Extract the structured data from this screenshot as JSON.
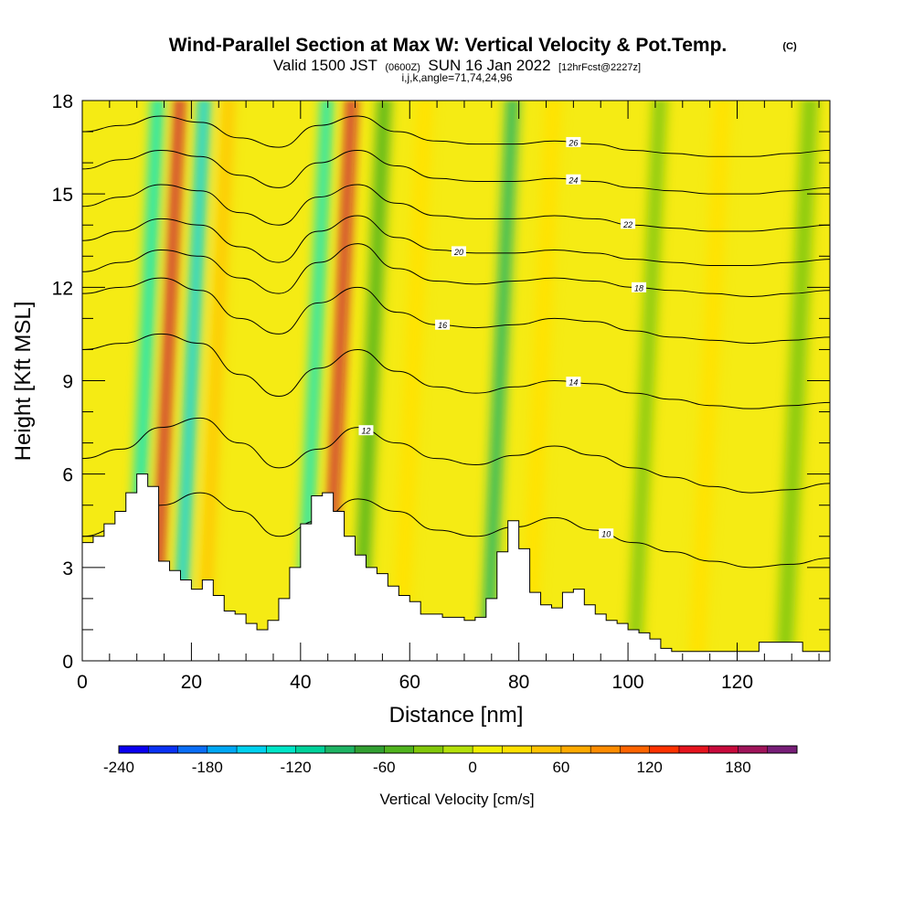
{
  "chart_data": {
    "type": "heatmap",
    "title": "Wind-Parallel Section at Max W: Vertical Velocity & Pot.Temp.",
    "title_mark": "(C)",
    "subtitle_prefix": "Valid 1500 JST",
    "subtitle_utc": "(0600Z)",
    "subtitle_date": "SUN 16 Jan 2022",
    "subtitle_fcst": "[12hrFcst@2227z]",
    "subtitle_line3": "i,j,k,angle=71,74,24,96",
    "xlabel": "Distance [nm]",
    "ylabel": "Height [Kft MSL]",
    "xlim": [
      0,
      137
    ],
    "ylim": [
      0,
      18
    ],
    "xticks": [
      "0",
      "20",
      "40",
      "60",
      "80",
      "100",
      "120"
    ],
    "yticks": [
      "0",
      "3",
      "6",
      "9",
      "12",
      "15",
      "18"
    ],
    "colorbar": {
      "label": "Vertical Velocity [cm/s]",
      "min": -240,
      "max": 220,
      "step": 20,
      "ticks": [
        "-240",
        "-180",
        "-120",
        "-60",
        "0",
        "60",
        "120",
        "180"
      ],
      "colors": [
        "#0a00f0",
        "#0a32f5",
        "#0a6ef8",
        "#00a8f5",
        "#00d2f0",
        "#00e6c8",
        "#00d29b",
        "#1eb464",
        "#32a032",
        "#50b41e",
        "#82c80a",
        "#b4e10a",
        "#f0f000",
        "#ffe100",
        "#ffc300",
        "#ffaa00",
        "#ff8c00",
        "#ff6400",
        "#ff3200",
        "#e6141e",
        "#c80a3c",
        "#a0145a",
        "#781e78"
      ]
    },
    "velocity_bands": [
      {
        "x": 11.5,
        "w": 2.2,
        "v": -140
      },
      {
        "x": 15.5,
        "w": 1.8,
        "v": 170
      },
      {
        "x": 20,
        "w": 2.2,
        "v": -150
      },
      {
        "x": 24.5,
        "w": 2,
        "v": 45
      },
      {
        "x": 42.5,
        "w": 2,
        "v": -130
      },
      {
        "x": 47,
        "w": 1.8,
        "v": 175
      },
      {
        "x": 53,
        "w": 2.5,
        "v": -55
      },
      {
        "x": 60.5,
        "w": 3,
        "v": 35
      },
      {
        "x": 76.5,
        "w": 2.2,
        "v": -90
      },
      {
        "x": 84,
        "w": 3,
        "v": 30
      },
      {
        "x": 103.5,
        "w": 2.5,
        "v": -35
      },
      {
        "x": 115,
        "w": 3,
        "v": 25
      },
      {
        "x": 131,
        "w": 3,
        "v": -25
      }
    ],
    "theta_isentropes": [
      {
        "label": "10",
        "h": [
          4.0,
          4.3,
          5.0,
          5.4,
          4.8,
          4.0,
          4.5,
          5.2,
          4.8,
          4.2,
          4.0,
          4.3,
          4.6,
          4.2,
          3.8,
          3.5,
          3.2,
          3.0,
          3.1,
          3.3
        ],
        "label_x": 96
      },
      {
        "label": "12",
        "h": [
          6.5,
          6.8,
          7.5,
          7.8,
          7.0,
          6.2,
          6.8,
          7.5,
          7.0,
          6.5,
          6.3,
          6.6,
          6.9,
          6.6,
          6.2,
          5.9,
          5.6,
          5.4,
          5.5,
          5.7
        ],
        "label_x": 52
      },
      {
        "label": "14",
        "h": [
          10.0,
          10.2,
          10.5,
          10.2,
          9.2,
          8.5,
          9.4,
          10.0,
          9.3,
          8.8,
          8.6,
          8.8,
          9.0,
          8.9,
          8.6,
          8.4,
          8.2,
          8.1,
          8.2,
          8.3
        ],
        "label_x": 90
      },
      {
        "label": "16",
        "h": [
          11.8,
          12.0,
          12.3,
          11.9,
          11.0,
          10.5,
          11.5,
          12.0,
          11.2,
          10.8,
          10.7,
          10.8,
          11.0,
          10.9,
          10.6,
          10.4,
          10.3,
          10.2,
          10.3,
          10.4
        ],
        "label_x": 66
      },
      {
        "label": "18",
        "h": [
          12.5,
          12.8,
          13.2,
          13.0,
          12.3,
          11.8,
          12.8,
          13.4,
          12.6,
          12.2,
          12.1,
          12.2,
          12.3,
          12.2,
          12.0,
          11.9,
          11.8,
          11.7,
          11.8,
          11.9
        ],
        "label_x": 102
      },
      {
        "label": "20",
        "h": [
          13.5,
          13.8,
          14.2,
          14.0,
          13.3,
          12.8,
          13.8,
          14.3,
          13.6,
          13.2,
          13.1,
          13.1,
          13.2,
          13.1,
          12.9,
          12.8,
          12.7,
          12.7,
          12.8,
          12.9
        ],
        "label_x": 69
      },
      {
        "label": "22",
        "h": [
          14.6,
          14.9,
          15.3,
          15.1,
          14.4,
          14.0,
          14.9,
          15.3,
          14.7,
          14.3,
          14.2,
          14.2,
          14.3,
          14.2,
          14.0,
          13.9,
          13.8,
          13.8,
          13.9,
          14.0
        ],
        "label_x": 100
      },
      {
        "label": "24",
        "h": [
          15.8,
          16.1,
          16.4,
          16.2,
          15.6,
          15.2,
          16.0,
          16.4,
          15.9,
          15.5,
          15.4,
          15.4,
          15.5,
          15.4,
          15.2,
          15.1,
          15.0,
          15.0,
          15.1,
          15.2
        ],
        "label_x": 90
      },
      {
        "label": "26",
        "h": [
          17.0,
          17.2,
          17.5,
          17.3,
          16.8,
          16.5,
          17.2,
          17.5,
          17.0,
          16.7,
          16.6,
          16.6,
          16.7,
          16.6,
          16.4,
          16.3,
          16.2,
          16.2,
          16.3,
          16.4
        ],
        "label_x": 90
      }
    ],
    "terrain_profile": {
      "x": [
        0,
        2,
        4,
        6,
        8,
        10,
        12,
        14,
        16,
        18,
        20,
        22,
        24,
        26,
        28,
        30,
        32,
        34,
        36,
        38,
        40,
        42,
        44,
        46,
        48,
        50,
        52,
        54,
        56,
        58,
        60,
        62,
        64,
        66,
        68,
        70,
        72,
        74,
        76,
        78,
        80,
        82,
        84,
        86,
        88,
        90,
        92,
        94,
        96,
        98,
        100,
        102,
        104,
        106,
        108,
        110,
        112,
        114,
        116,
        118,
        120,
        122,
        124,
        126,
        128,
        130,
        132,
        134,
        137
      ],
      "h": [
        3.8,
        4.0,
        4.4,
        4.8,
        5.4,
        6.0,
        5.6,
        3.2,
        2.9,
        2.6,
        2.3,
        2.6,
        2.1,
        1.6,
        1.5,
        1.2,
        1.0,
        1.3,
        2.0,
        3.0,
        4.4,
        5.3,
        5.4,
        4.8,
        4.0,
        3.4,
        3.0,
        2.8,
        2.4,
        2.1,
        1.9,
        1.5,
        1.5,
        1.4,
        1.4,
        1.3,
        1.4,
        2.0,
        3.5,
        4.5,
        3.6,
        2.2,
        1.8,
        1.7,
        2.2,
        2.3,
        1.8,
        1.5,
        1.3,
        1.2,
        1.0,
        0.9,
        0.7,
        0.4,
        0.3,
        0.3,
        0.3,
        0.3,
        0.3,
        0.3,
        0.3,
        0.3,
        0.6,
        0.6,
        0.6,
        0.6,
        0.3,
        0.3,
        0.3
      ]
    }
  }
}
